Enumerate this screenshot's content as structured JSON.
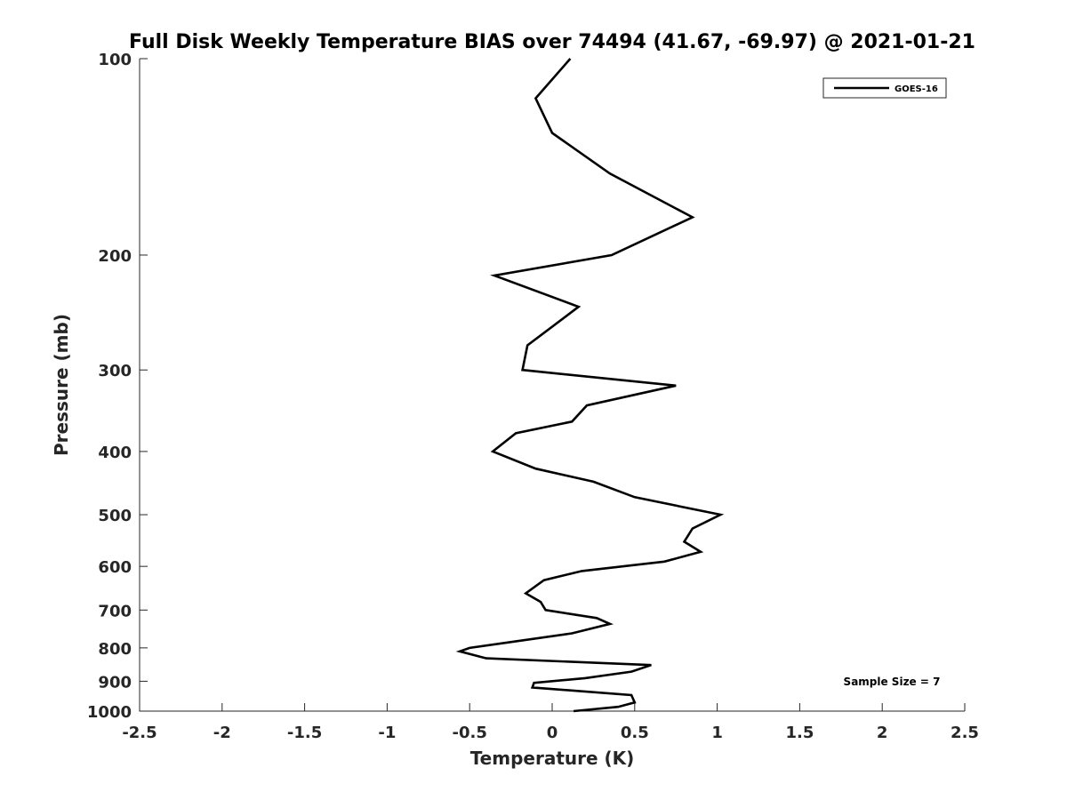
{
  "chart_data": {
    "type": "line",
    "title": "Full Disk Weekly Temperature BIAS over 74494 (41.67, -69.97) @ 2021-01-21",
    "xlabel": "Temperature (K)",
    "ylabel": "Pressure (mb)",
    "xlim": [
      -2.5,
      2.5
    ],
    "ylim": [
      100,
      1000
    ],
    "yscale": "log",
    "yreversed": true,
    "grid": false,
    "legend_position": "top-right",
    "xticks": [
      "-2.5",
      "-2",
      "-1.5",
      "-1",
      "-0.5",
      "0",
      "0.5",
      "1",
      "1.5",
      "2",
      "2.5"
    ],
    "yticks": [
      "100",
      "200",
      "300",
      "400",
      "500",
      "600",
      "700",
      "800",
      "900",
      "1000"
    ],
    "annotation": "Sample Size = 7",
    "series": [
      {
        "name": "GOES-16",
        "color": "#000000",
        "points": [
          {
            "p": 100,
            "t": 0.11
          },
          {
            "p": 115,
            "t": -0.1
          },
          {
            "p": 130,
            "t": 0.0
          },
          {
            "p": 150,
            "t": 0.35
          },
          {
            "p": 175,
            "t": 0.85
          },
          {
            "p": 200,
            "t": 0.36
          },
          {
            "p": 215,
            "t": -0.35
          },
          {
            "p": 240,
            "t": 0.16
          },
          {
            "p": 275,
            "t": -0.15
          },
          {
            "p": 300,
            "t": -0.18
          },
          {
            "p": 317,
            "t": 0.75
          },
          {
            "p": 340,
            "t": 0.21
          },
          {
            "p": 360,
            "t": 0.12
          },
          {
            "p": 375,
            "t": -0.22
          },
          {
            "p": 400,
            "t": -0.36
          },
          {
            "p": 425,
            "t": -0.1
          },
          {
            "p": 445,
            "t": 0.25
          },
          {
            "p": 470,
            "t": 0.5
          },
          {
            "p": 500,
            "t": 1.02
          },
          {
            "p": 525,
            "t": 0.85
          },
          {
            "p": 550,
            "t": 0.8
          },
          {
            "p": 570,
            "t": 0.9
          },
          {
            "p": 590,
            "t": 0.68
          },
          {
            "p": 610,
            "t": 0.18
          },
          {
            "p": 630,
            "t": -0.05
          },
          {
            "p": 660,
            "t": -0.16
          },
          {
            "p": 680,
            "t": -0.07
          },
          {
            "p": 700,
            "t": -0.04
          },
          {
            "p": 720,
            "t": 0.27
          },
          {
            "p": 735,
            "t": 0.35
          },
          {
            "p": 760,
            "t": 0.12
          },
          {
            "p": 785,
            "t": -0.27
          },
          {
            "p": 800,
            "t": -0.5
          },
          {
            "p": 810,
            "t": -0.56
          },
          {
            "p": 830,
            "t": -0.4
          },
          {
            "p": 850,
            "t": 0.6
          },
          {
            "p": 870,
            "t": 0.48
          },
          {
            "p": 890,
            "t": 0.2
          },
          {
            "p": 905,
            "t": -0.11
          },
          {
            "p": 920,
            "t": -0.12
          },
          {
            "p": 945,
            "t": 0.48
          },
          {
            "p": 970,
            "t": 0.5
          },
          {
            "p": 985,
            "t": 0.4
          },
          {
            "p": 1000,
            "t": 0.13
          }
        ]
      }
    ]
  }
}
